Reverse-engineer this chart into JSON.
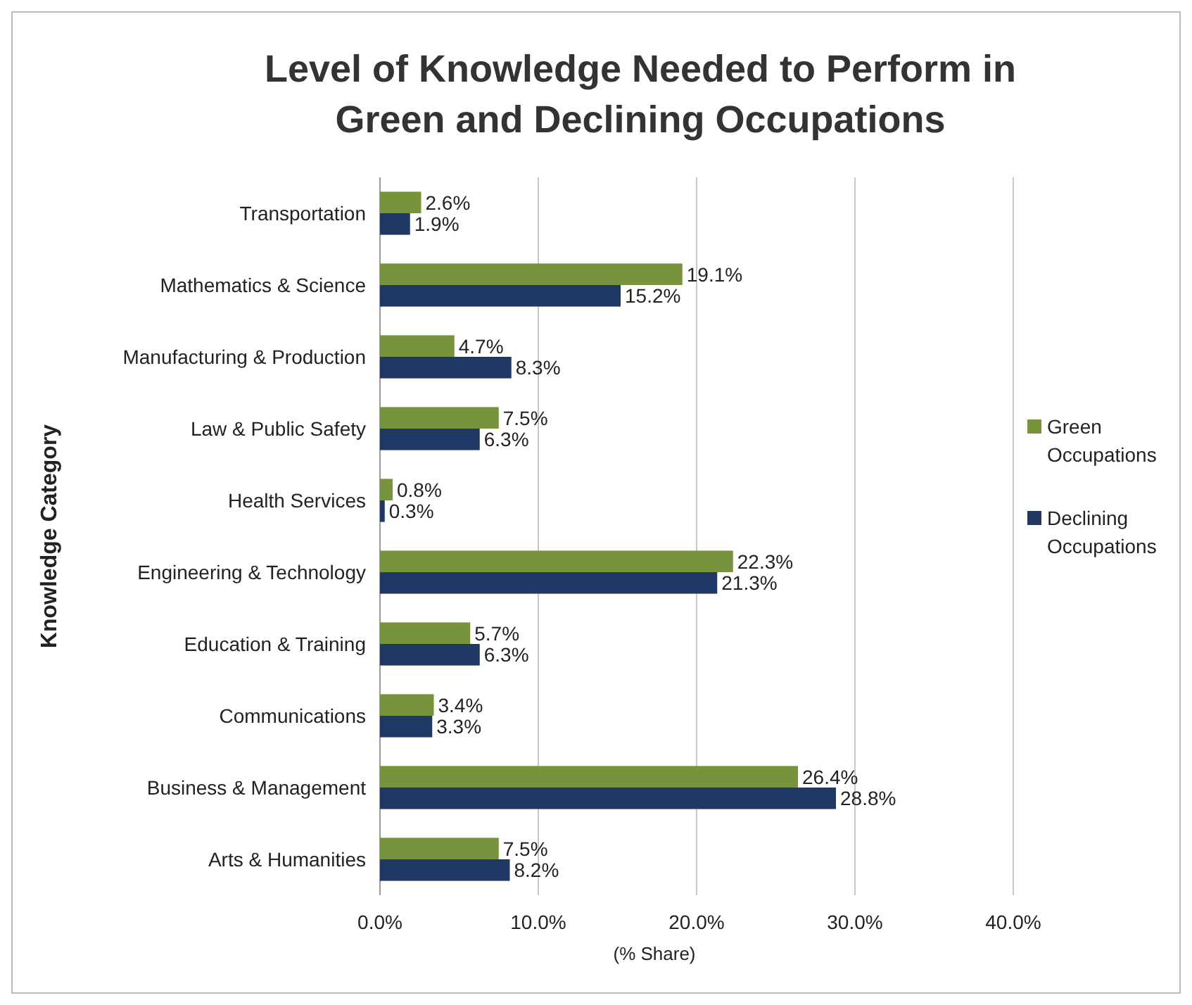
{
  "chart_data": {
    "type": "bar",
    "orientation": "horizontal",
    "title": "Level of Knowledge Needed to Perform in Green and Declining Occupations",
    "xlabel": "(% Share)",
    "ylabel": "Knowledge Category",
    "categories": [
      "Transportation",
      "Mathematics & Science",
      "Manufacturing & Production",
      "Law & Public Safety",
      "Health Services",
      "Engineering & Technology",
      "Education & Training",
      "Communications",
      "Business & Management",
      "Arts & Humanities"
    ],
    "series": [
      {
        "name": "Green Occupations",
        "color": "#77933c",
        "values": [
          2.6,
          19.1,
          4.7,
          7.5,
          0.8,
          22.3,
          5.7,
          3.4,
          26.4,
          7.5
        ],
        "value_labels": [
          "2.6%",
          "19.1%",
          "4.7%",
          "7.5%",
          "0.8%",
          "22.3%",
          "5.7%",
          "3.4%",
          "26.4%",
          "7.5%"
        ]
      },
      {
        "name": "Declining Occupations",
        "color": "#1f3864",
        "values": [
          1.9,
          15.2,
          8.3,
          6.3,
          0.3,
          21.3,
          6.3,
          3.3,
          28.8,
          8.2
        ],
        "value_labels": [
          "1.9%",
          "15.2%",
          "8.3%",
          "6.3%",
          "0.3%",
          "21.3%",
          "6.3%",
          "3.3%",
          "28.8%",
          "8.2%"
        ]
      }
    ],
    "xlim": [
      0,
      40
    ],
    "xticks": [
      {
        "value": 0,
        "label": "0.0%"
      },
      {
        "value": 10,
        "label": "10.0%"
      },
      {
        "value": 20,
        "label": "20.0%"
      },
      {
        "value": 30,
        "label": "30.0%"
      },
      {
        "value": 40,
        "label": "40.0%"
      }
    ],
    "grid": "x",
    "legend": "right"
  }
}
